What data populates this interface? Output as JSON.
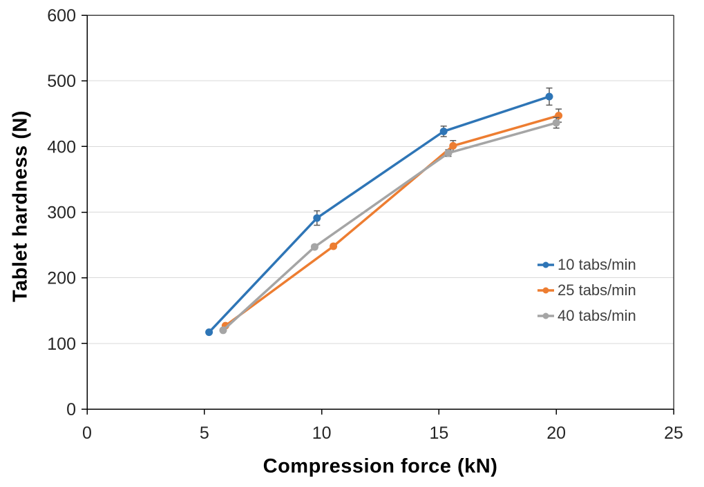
{
  "chart_data": {
    "type": "line",
    "title": "",
    "xlabel": "Compression force (kN)",
    "ylabel": "Tablet hardness (N)",
    "xlim": [
      0,
      25
    ],
    "ylim": [
      0,
      600
    ],
    "x_ticks": [
      0,
      5,
      10,
      15,
      20,
      25
    ],
    "y_ticks": [
      0,
      100,
      200,
      300,
      400,
      500,
      600
    ],
    "grid": "horizontal-light",
    "legend_position": "inside-right",
    "marker": "circle",
    "error_bars": "vertical",
    "series": [
      {
        "name": "10 tabs/min",
        "color": "#2E75B6",
        "x": [
          5.2,
          9.8,
          15.2,
          19.7
        ],
        "y": [
          117,
          291,
          423,
          476
        ],
        "y_err": [
          2,
          11,
          8,
          13
        ]
      },
      {
        "name": "25 tabs/min",
        "color": "#ED7D31",
        "x": [
          5.9,
          10.5,
          15.6,
          20.1
        ],
        "y": [
          127,
          248,
          401,
          447
        ],
        "y_err": [
          2,
          3,
          8,
          10
        ]
      },
      {
        "name": "40 tabs/min",
        "color": "#A5A5A5",
        "x": [
          5.8,
          9.7,
          15.4,
          20.0
        ],
        "y": [
          120,
          247,
          390,
          436
        ],
        "y_err": [
          2,
          3,
          5,
          8
        ]
      }
    ],
    "colors": {
      "grid": "#D9D9D9",
      "axis": "#000000",
      "plot_border": "#404040",
      "tick_label": "#262626",
      "axis_title": "#000000",
      "legend_text": "#404040",
      "error_bar": "#595959",
      "background": "#FFFFFF"
    }
  }
}
